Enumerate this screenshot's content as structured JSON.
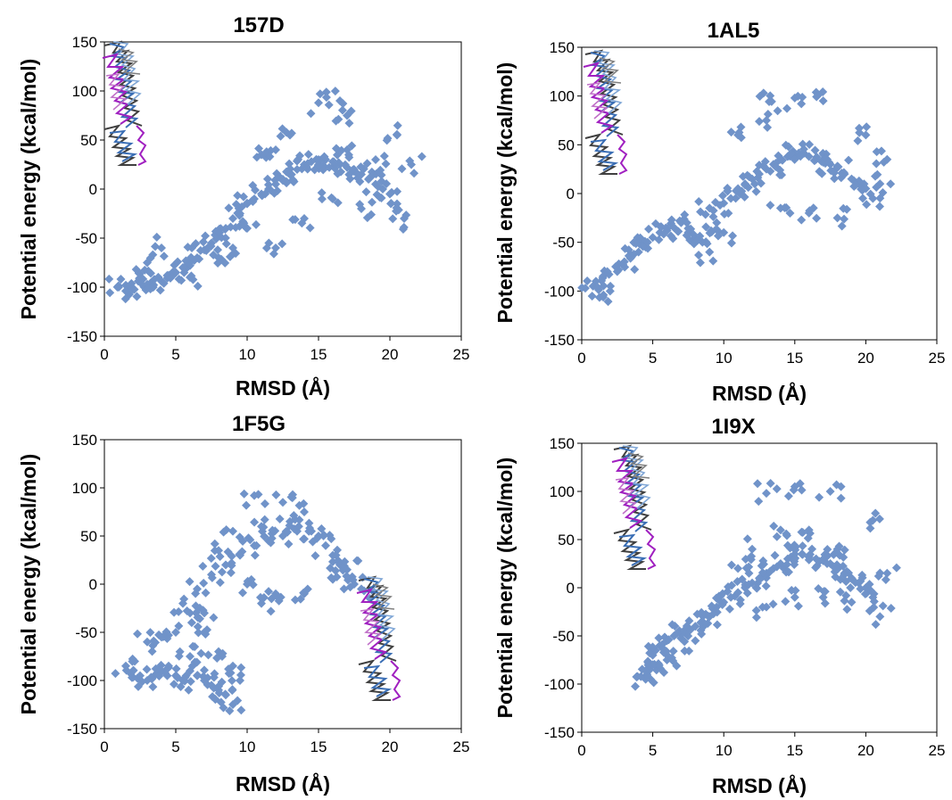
{
  "colors": {
    "points": "#7093C9",
    "strand_dark": "#404040",
    "strand_gray": "#808080",
    "strand_blue": "#3A6EB5",
    "strand_lightblue": "#7FA6D6",
    "strand_magenta": "#A020C0",
    "strand_pink": "#C070C8"
  },
  "inset_icon": "rna-structure-superposition",
  "chart_data": [
    {
      "type": "scatter",
      "title": "157D",
      "xlabel": "RMSD (Å)",
      "ylabel": "Potential energy (kcal/mol)",
      "xlim": [
        0,
        25
      ],
      "ylim": [
        -150,
        150
      ],
      "xticks": [
        "0",
        "5",
        "10",
        "15",
        "20",
        "25"
      ],
      "yticks": [
        "150",
        "100",
        "50",
        "0",
        "-50",
        "-100",
        "-150"
      ],
      "marker": "diamond",
      "inset": "top-left",
      "series": [
        {
          "points": [
            [
              1,
              -100
            ],
            [
              1.5,
              -98
            ],
            [
              2,
              -102
            ],
            [
              2.5,
              -95
            ],
            [
              3,
              -97
            ],
            [
              3.5,
              -92
            ],
            [
              4,
              -94
            ],
            [
              4.5,
              -88
            ],
            [
              5,
              -85
            ],
            [
              5.5,
              -80
            ],
            [
              6,
              -78
            ],
            [
              6.5,
              -70
            ],
            [
              7,
              -62
            ],
            [
              7.5,
              -55
            ],
            [
              8,
              -48
            ],
            [
              8.5,
              -40
            ],
            [
              9,
              -30
            ],
            [
              9.5,
              -25
            ],
            [
              10,
              -15
            ],
            [
              10.5,
              -10
            ],
            [
              11,
              -5
            ],
            [
              11.5,
              0
            ],
            [
              12,
              5
            ],
            [
              12.5,
              10
            ],
            [
              13,
              15
            ],
            [
              13.5,
              20
            ],
            [
              14,
              25
            ],
            [
              14.5,
              28
            ],
            [
              15,
              30
            ],
            [
              15.5,
              30
            ],
            [
              16,
              28
            ],
            [
              16.5,
              25
            ],
            [
              17,
              22
            ],
            [
              17.5,
              18
            ],
            [
              18,
              15
            ],
            [
              18.5,
              10
            ],
            [
              19,
              5
            ],
            [
              19.5,
              0
            ],
            [
              20,
              -5
            ],
            [
              20.5,
              -15
            ],
            [
              21,
              -30
            ],
            [
              21.5,
              25
            ],
            [
              15,
              88
            ],
            [
              16.5,
              90
            ],
            [
              17,
              75
            ],
            [
              20.5,
              55
            ],
            [
              12,
              40
            ],
            [
              10,
              -40
            ],
            [
              8,
              -70
            ],
            [
              12,
              -60
            ],
            [
              14,
              -30
            ],
            [
              16,
              -10
            ],
            [
              18,
              -20
            ],
            [
              11,
              35
            ],
            [
              13,
              55
            ],
            [
              9,
              -60
            ],
            [
              6,
              -90
            ],
            [
              3,
              -75
            ],
            [
              4,
              -60
            ],
            [
              17,
              40
            ],
            [
              19,
              30
            ]
          ]
        }
      ]
    },
    {
      "type": "scatter",
      "title": "1AL5",
      "xlabel": "RMSD (Å)",
      "ylabel": "Potential energy (kcal/mol)",
      "xlim": [
        0,
        25
      ],
      "ylim": [
        -150,
        150
      ],
      "xticks": [
        "0",
        "5",
        "10",
        "15",
        "20",
        "25"
      ],
      "yticks": [
        "150",
        "100",
        "50",
        "0",
        "-50",
        "-100",
        "-150"
      ],
      "marker": "diamond",
      "inset": "top-left",
      "series": [
        {
          "points": [
            [
              0.8,
              -95
            ],
            [
              1,
              -90
            ],
            [
              1.5,
              -85
            ],
            [
              2,
              -100
            ],
            [
              2.5,
              -80
            ],
            [
              3,
              -70
            ],
            [
              3.5,
              -65
            ],
            [
              4,
              -60
            ],
            [
              4.5,
              -55
            ],
            [
              5,
              -45
            ],
            [
              5.5,
              -40
            ],
            [
              6,
              -38
            ],
            [
              6.5,
              -35
            ],
            [
              7,
              -30
            ],
            [
              7.5,
              -40
            ],
            [
              8,
              -45
            ],
            [
              8.5,
              -50
            ],
            [
              9,
              -60
            ],
            [
              9.5,
              -30
            ],
            [
              10,
              -10
            ],
            [
              10.5,
              -5
            ],
            [
              11,
              5
            ],
            [
              11.5,
              10
            ],
            [
              12,
              15
            ],
            [
              12.5,
              20
            ],
            [
              13,
              25
            ],
            [
              13.5,
              30
            ],
            [
              14,
              35
            ],
            [
              14.5,
              38
            ],
            [
              15,
              40
            ],
            [
              15.5,
              40
            ],
            [
              16,
              38
            ],
            [
              16.5,
              35
            ],
            [
              17,
              32
            ],
            [
              17.5,
              30
            ],
            [
              18,
              28
            ],
            [
              18.5,
              20
            ],
            [
              19,
              15
            ],
            [
              19.5,
              10
            ],
            [
              20,
              5
            ],
            [
              20.5,
              -5
            ],
            [
              21,
              10
            ],
            [
              21.5,
              35
            ],
            [
              12.8,
              103
            ],
            [
              15,
              98
            ],
            [
              17,
              95
            ],
            [
              20,
              60
            ],
            [
              11,
              60
            ],
            [
              13,
              75
            ],
            [
              16,
              -20
            ],
            [
              18,
              -25
            ],
            [
              14,
              -15
            ],
            [
              9,
              -15
            ],
            [
              10,
              -40
            ]
          ]
        }
      ]
    },
    {
      "type": "scatter",
      "title": "1F5G",
      "xlabel": "RMSD (Å)",
      "ylabel": "Potential energy (kcal/mol)",
      "xlim": [
        0,
        25
      ],
      "ylim": [
        -150,
        150
      ],
      "xticks": [
        "0",
        "5",
        "10",
        "15",
        "20",
        "25"
      ],
      "yticks": [
        "150",
        "100",
        "50",
        "0",
        "-50",
        "-100",
        "-150"
      ],
      "marker": "diamond",
      "inset": "bottom-right",
      "series": [
        {
          "points": [
            [
              1.5,
              -85
            ],
            [
              2,
              -90
            ],
            [
              2.5,
              -95
            ],
            [
              3,
              -100
            ],
            [
              3.5,
              -95
            ],
            [
              4,
              -90
            ],
            [
              4.5,
              -85
            ],
            [
              5,
              -95
            ],
            [
              5.5,
              -100
            ],
            [
              6,
              -90
            ],
            [
              6.5,
              -95
            ],
            [
              7,
              -100
            ],
            [
              7.5,
              -105
            ],
            [
              8,
              -110
            ],
            [
              8.5,
              -115
            ],
            [
              9,
              -125
            ],
            [
              9.5,
              -100
            ],
            [
              9,
              -85
            ],
            [
              8,
              -70
            ],
            [
              7,
              -50
            ],
            [
              6,
              -30
            ],
            [
              5,
              -50
            ],
            [
              4,
              -55
            ],
            [
              3,
              -60
            ],
            [
              5.5,
              -20
            ],
            [
              6.5,
              -5
            ],
            [
              7.5,
              10
            ],
            [
              8.5,
              20
            ],
            [
              9.5,
              30
            ],
            [
              10.5,
              40
            ],
            [
              11.5,
              45
            ],
            [
              12.5,
              50
            ],
            [
              13.5,
              55
            ],
            [
              14.5,
              55
            ],
            [
              15,
              50
            ],
            [
              15.5,
              40
            ],
            [
              16,
              30
            ],
            [
              16.5,
              20
            ],
            [
              17,
              15
            ],
            [
              17.5,
              0
            ],
            [
              18,
              -5
            ],
            [
              10.5,
              92
            ],
            [
              12.5,
              85
            ],
            [
              14,
              75
            ],
            [
              11,
              60
            ],
            [
              13,
              65
            ],
            [
              8,
              35
            ],
            [
              9,
              55
            ],
            [
              10,
              0
            ],
            [
              11,
              -20
            ],
            [
              12,
              -10
            ],
            [
              14,
              -10
            ],
            [
              16,
              5
            ],
            [
              7,
              -30
            ],
            [
              6,
              -75
            ]
          ]
        }
      ]
    },
    {
      "type": "scatter",
      "title": "1I9X",
      "xlabel": "RMSD (Å)",
      "ylabel": "Potential energy (kcal/mol)",
      "xlim": [
        0,
        25
      ],
      "ylim": [
        -150,
        150
      ],
      "xticks": [
        "0",
        "5",
        "10",
        "15",
        "20",
        "25"
      ],
      "yticks": [
        "150",
        "100",
        "50",
        "0",
        "-50",
        "-100",
        "-150"
      ],
      "marker": "diamond",
      "inset": "top-left",
      "series": [
        {
          "points": [
            [
              4.5,
              -95
            ],
            [
              4.6,
              -90
            ],
            [
              4.8,
              -85
            ],
            [
              5,
              -80
            ],
            [
              5,
              -70
            ],
            [
              5.2,
              -65
            ],
            [
              5.5,
              -60
            ],
            [
              6,
              -55
            ],
            [
              6.5,
              -50
            ],
            [
              7,
              -48
            ],
            [
              7.5,
              -45
            ],
            [
              8,
              -40
            ],
            [
              8.5,
              -35
            ],
            [
              9,
              -30
            ],
            [
              9.5,
              -20
            ],
            [
              10,
              -15
            ],
            [
              10.5,
              -10
            ],
            [
              11,
              -5
            ],
            [
              11.5,
              0
            ],
            [
              12,
              5
            ],
            [
              12.5,
              10
            ],
            [
              13,
              15
            ],
            [
              13.5,
              20
            ],
            [
              14,
              25
            ],
            [
              14.5,
              30
            ],
            [
              15,
              35
            ],
            [
              15.5,
              35
            ],
            [
              16,
              32
            ],
            [
              16.5,
              30
            ],
            [
              17,
              28
            ],
            [
              17.5,
              25
            ],
            [
              18,
              22
            ],
            [
              18.5,
              15
            ],
            [
              19,
              10
            ],
            [
              19.5,
              5
            ],
            [
              20,
              0
            ],
            [
              20.5,
              -10
            ],
            [
              21,
              -30
            ],
            [
              21.5,
              15
            ],
            [
              13,
              98
            ],
            [
              15,
              105
            ],
            [
              17.5,
              100
            ],
            [
              20.5,
              70
            ],
            [
              14,
              60
            ],
            [
              16,
              60
            ],
            [
              18,
              40
            ],
            [
              12,
              40
            ],
            [
              11,
              20
            ],
            [
              13,
              -20
            ],
            [
              15,
              -10
            ],
            [
              17,
              -10
            ],
            [
              19,
              -15
            ],
            [
              8,
              -55
            ],
            [
              6,
              -75
            ]
          ]
        }
      ]
    }
  ]
}
